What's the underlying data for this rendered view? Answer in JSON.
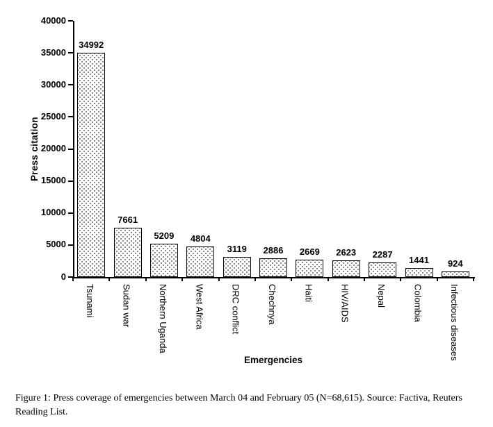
{
  "figure": {
    "caption": "Figure 1: Press coverage of emergencies between March 04 and February 05 (N=68,615). Source: Factiva, Reuters Reading List."
  },
  "chart_data": {
    "type": "bar",
    "title": "",
    "xlabel": "Emergencies",
    "ylabel": "Press citation",
    "categories": [
      "Tsunami",
      "Sudan war",
      "Northern Uganda",
      "West Africa",
      "DRC conflict",
      "Chechnya",
      "Haiti",
      "HIV/AIDS",
      "Nepal",
      "Colombia",
      "Infectious diseases"
    ],
    "values": [
      34992,
      7661,
      5209,
      4804,
      3119,
      2886,
      2669,
      2623,
      2287,
      1441,
      924
    ],
    "ylim": [
      0,
      40000
    ],
    "yticks": [
      0,
      5000,
      10000,
      15000,
      20000,
      25000,
      30000,
      35000,
      40000
    ],
    "grid": false,
    "legend": "none",
    "bar_fill": "dotted-pattern",
    "colors": {
      "background": "#ffffff",
      "text": "#000000",
      "axis": "#000000",
      "bar_border": "#000000",
      "bar_dot": "#6e6e6e"
    }
  }
}
